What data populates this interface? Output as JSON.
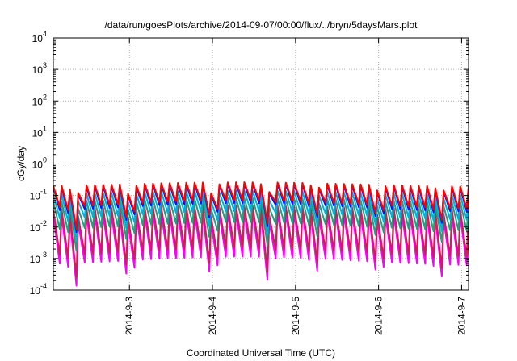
{
  "chart_data": {
    "type": "line",
    "title": "/data/run/goesPlots/archive/2014-09-07/00:00/flux/../bryn/5daysMars.plot",
    "xlabel": "Coordinated Universal Time (UTC)",
    "ylabel": "cGy/day",
    "yscale": "log",
    "ylim": [
      0.0001,
      10000
    ],
    "xlim": [
      "2014-09-02T02:00",
      "2014-09-07T02:00"
    ],
    "x_ticks": [
      "2014-9-3",
      "2014-9-4",
      "2014-9-5",
      "2014-9-6",
      "2014-9-7"
    ],
    "y_ticks": [
      {
        "base": "10",
        "exp": "-4"
      },
      {
        "base": "10",
        "exp": "-3"
      },
      {
        "base": "10",
        "exp": "-2"
      },
      {
        "base": "10",
        "exp": "-1"
      },
      {
        "base": "10",
        "exp": "0"
      },
      {
        "base": "10",
        "exp": "1"
      },
      {
        "base": "10",
        "exp": "2"
      },
      {
        "base": "10",
        "exp": "3"
      },
      {
        "base": "10",
        "exp": "4"
      }
    ],
    "grid": true,
    "series": [
      {
        "color": "#ff0000",
        "peak": 0.22,
        "trough": 0.05
      },
      {
        "color": "#1010ff",
        "peak": 0.2,
        "trough": 0.04
      },
      {
        "color": "#00b0e0",
        "peak": 0.12,
        "trough": 0.022
      },
      {
        "color": "#20a080",
        "peak": 0.07,
        "trough": 0.01
      },
      {
        "color": "#cc2050",
        "peak": 0.04,
        "trough": 0.0015
      },
      {
        "color": "#ff00ff",
        "peak": 0.025,
        "trough": 0.0008
      }
    ],
    "cycles": 50,
    "dips": [
      {
        "date": "2014-09-02T08:20",
        "factor": 0.35
      },
      {
        "date": "2014-09-03T00:00",
        "factor": 0.4
      },
      {
        "date": "2014-09-04T00:00",
        "factor": 0.35
      },
      {
        "date": "2014-09-04T16:00",
        "factor": 0.4
      },
      {
        "date": "2014-09-05T06:00",
        "factor": 0.6
      },
      {
        "date": "2014-09-06T00:00",
        "factor": 0.6
      },
      {
        "date": "2014-09-06T18:00",
        "factor": 0.6
      }
    ]
  }
}
